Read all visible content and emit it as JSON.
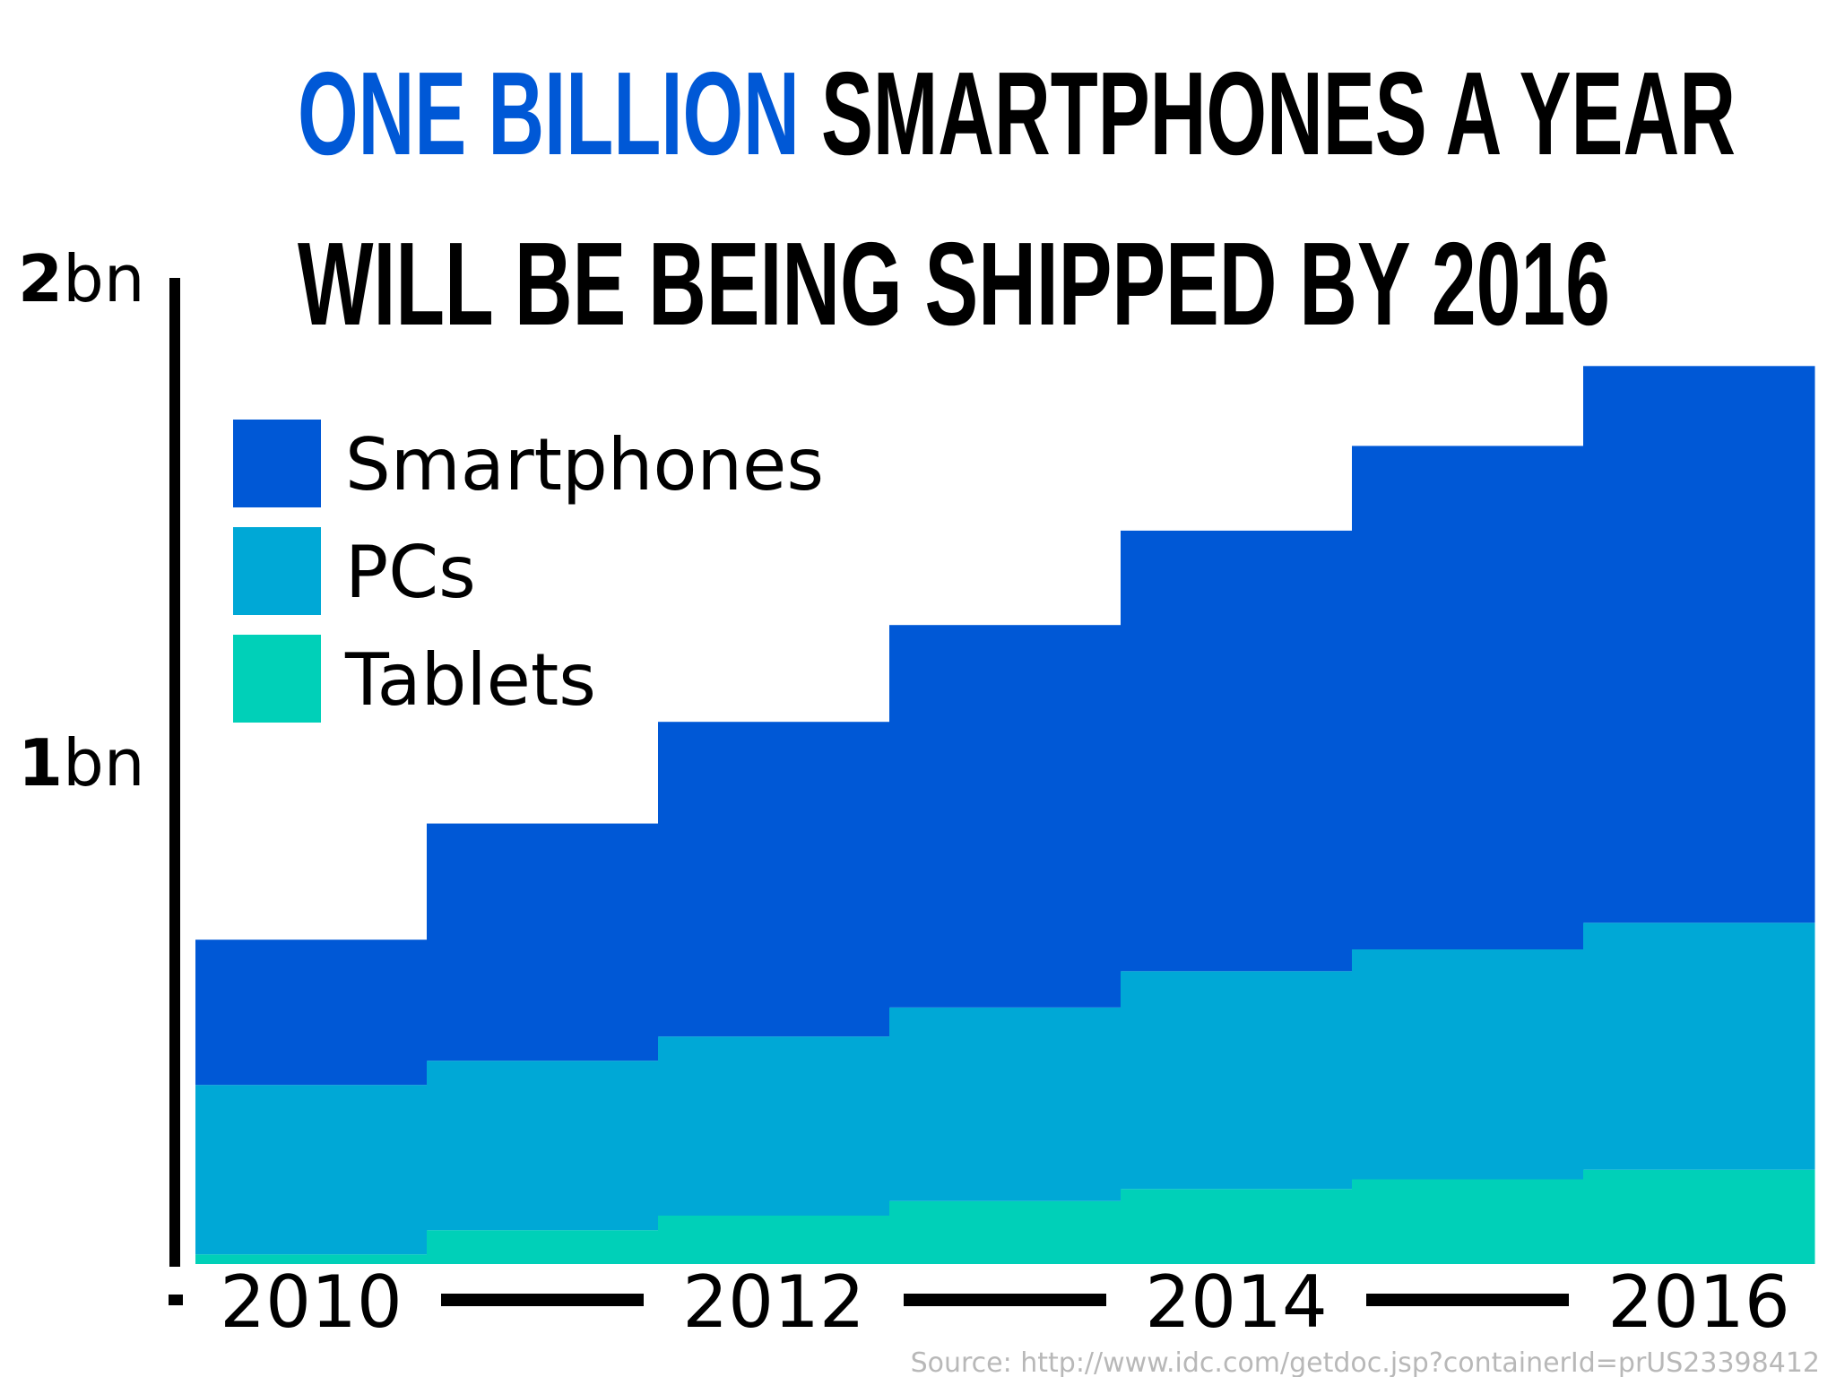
{
  "chart_data": {
    "type": "bar",
    "stacked": true,
    "title_highlight": "ONE BILLION",
    "title_rest": "SMARTPHONES A YEAR",
    "title_line2": "WILL BE BEING SHIPPED BY 2016",
    "x": [
      2010,
      2011,
      2012,
      2013,
      2014,
      2015,
      2016
    ],
    "x_tick_labels": [
      "2010",
      "2012",
      "2014",
      "2016"
    ],
    "y_tick_labels": [
      {
        "value": 2,
        "bold": "2",
        "rest": "bn"
      },
      {
        "value": 1,
        "bold": "1",
        "rest": "bn"
      }
    ],
    "ylim": [
      0,
      2
    ],
    "legend_position": "top-left",
    "series": [
      {
        "name": "Tablets",
        "color": "#00d0b8",
        "values": [
          0.02,
          0.07,
          0.1,
          0.13,
          0.155,
          0.175,
          0.195
        ]
      },
      {
        "name": "PCs",
        "color": "#00a8d6",
        "values": [
          0.35,
          0.35,
          0.37,
          0.4,
          0.45,
          0.475,
          0.51
        ]
      },
      {
        "name": "Smartphones",
        "color": "#0058d6",
        "values": [
          0.3,
          0.49,
          0.65,
          0.79,
          0.91,
          1.04,
          1.15
        ]
      }
    ],
    "legend_order": [
      "Smartphones",
      "PCs",
      "Tablets"
    ],
    "source": "Source: http://www.idc.com/getdoc.jsp?containerId=prUS23398412"
  },
  "colors": {
    "highlight": "#0058d6",
    "text": "#000000",
    "axis": "#000000"
  }
}
